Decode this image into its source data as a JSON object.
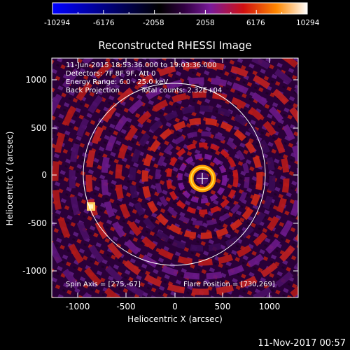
{
  "colorbar": {
    "ticks": [
      "-10294",
      "-6176",
      "-2058",
      "2058",
      "6176",
      "10294"
    ],
    "colors": [
      "#0000ff",
      "#000000",
      "#330044",
      "#7a1a9a",
      "#d01010",
      "#ff8800",
      "#ffffff"
    ]
  },
  "plot": {
    "title": "Reconstructed RHESSI Image",
    "xlabel": "Heliocentric X (arcsec)",
    "ylabel": "Heliocentric Y (arcsec)",
    "xticks": [
      "-1000",
      "-500",
      "0",
      "500",
      "1000"
    ],
    "yticks": [
      "1000",
      "500",
      "0",
      "-500",
      "-1000"
    ],
    "xlim": [
      -1280,
      1280
    ],
    "ylim": [
      -1250,
      1250
    ]
  },
  "info": {
    "time_range": "11-Jun-2015 18:53:36.000 to 19:03:36.000",
    "detectors": "Detectors: 7F 8F 9F, Att 0",
    "energy": "Energy Range: 6.0 - 25.0 keV",
    "method": "Back Projection",
    "counts": "Total counts: 2.32E+04",
    "spin_axis": "Spin Axis = [275,-67]",
    "flare_position": "Flare Position = [730,269]"
  },
  "footer": {
    "date": "11-Nov-2017 00:57"
  },
  "colors": {
    "background": "#000000",
    "limb": "#ffffff",
    "center_cross": "#ffffff"
  }
}
